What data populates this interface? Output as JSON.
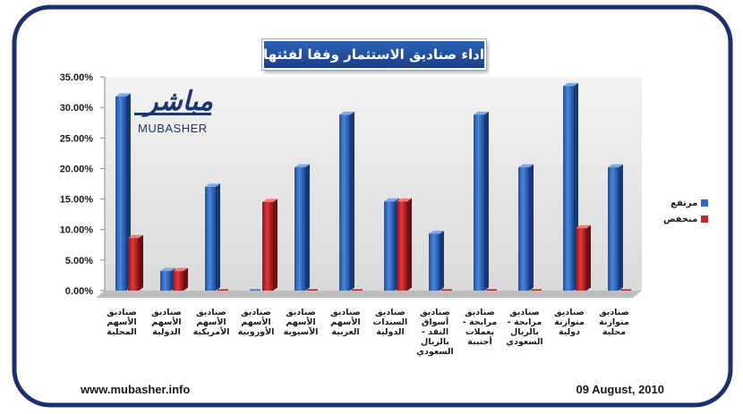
{
  "title": "اداء صناديق الاستثمار وفقا لفئتها",
  "footer": {
    "website": "www.mubasher.info",
    "date": "09 August, 2010"
  },
  "logo": {
    "arabic": "مباشر",
    "english": "MUBASHER"
  },
  "colors": {
    "high": "#2e6bc4",
    "low": "#c0262a",
    "frame": "#1c2f6e"
  },
  "chart_data": {
    "type": "bar",
    "categories": [
      "صناديق الأسهم المحلية",
      "صناديق الأسهم الدولية",
      "صناديق الأسهم الأمريكية",
      "صناديق الأسهم الأوروبية",
      "صناديق الأسهم الآسيوية",
      "صناديق الأسهم العربية",
      "صناديق السندات الدولية",
      "صناديق أسواق النقد - بالريال السعودي",
      "صناديق مرابحة - بعملات أجنبية",
      "صناديق مرابحة - بالريال السعودي",
      "صناديق متوازنة دولية",
      "صناديق متوازنة محلية"
    ],
    "series": [
      {
        "name": "مرتفع",
        "color": "#2e6bc4",
        "values": [
          31.8,
          3.2,
          17.0,
          0,
          20.2,
          28.8,
          14.6,
          9.3,
          28.8,
          20.2,
          33.5,
          20.2
        ]
      },
      {
        "name": "منخفض",
        "color": "#c0262a",
        "values": [
          8.6,
          3.2,
          0,
          14.5,
          0,
          0,
          14.6,
          0,
          0,
          0,
          10.2,
          0
        ]
      }
    ],
    "ylim": [
      0,
      35
    ],
    "yticks": [
      "0.00%",
      "5.00%",
      "10.00%",
      "15.00%",
      "20.00%",
      "25.00%",
      "30.00%",
      "35.00%"
    ],
    "legend_position": "right",
    "grid": false
  }
}
